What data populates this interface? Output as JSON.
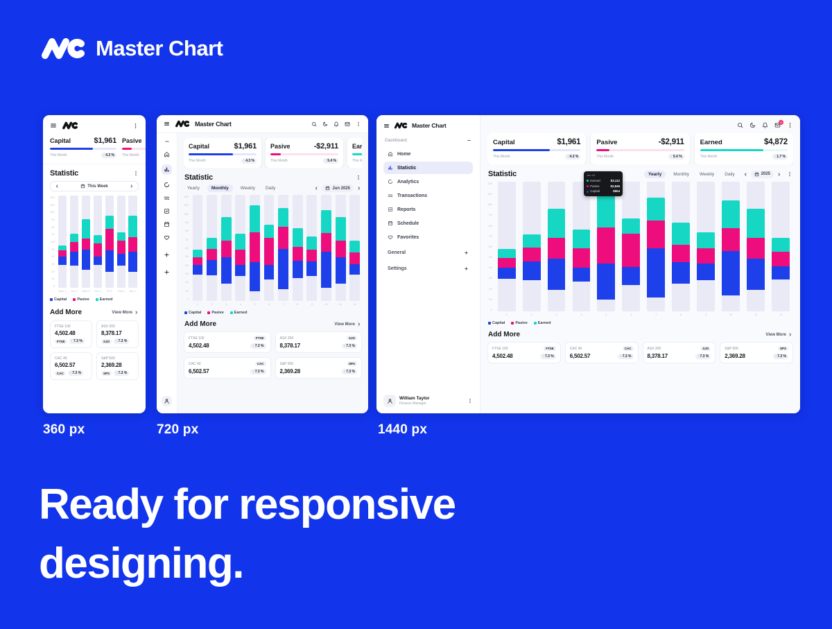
{
  "page": {
    "brand": "Master Chart",
    "headline": [
      "Ready for responsive",
      "designing."
    ],
    "breakpoints": [
      "360 px",
      "720 px",
      "1440 px"
    ]
  },
  "colors": {
    "background": "#1235ec",
    "capital": "#1d40ea",
    "pasive": "#ee0d7d",
    "earned": "#16d7c4",
    "track": "#e9eaf6",
    "badge": "#ee2c6c"
  },
  "header": {
    "mail_badge": "3"
  },
  "stats": [
    {
      "label": "Capital",
      "value": "$1,961",
      "period": "This Month",
      "change": "4.3 %",
      "progress": 65
    },
    {
      "label": "Pasive",
      "value": "-$2,911",
      "period": "This Month",
      "change": "5.4 %",
      "progress": 15
    },
    {
      "label": "Earned",
      "value": "$4,872",
      "period": "This Month",
      "change": "1.7 %",
      "progress": 72
    }
  ],
  "statistic": {
    "title": "Statistic",
    "tabs": [
      "Yearly",
      "Monthly",
      "Weekly",
      "Daily"
    ],
    "range_mobile": "This Week",
    "range_tablet": "Jun 2025",
    "range_desktop": "2025",
    "legend": [
      "Capital",
      "Pasive",
      "Earned"
    ]
  },
  "tooltip": {
    "date": "Jun 15",
    "rows": [
      {
        "name": "Earned",
        "value": "$3,112"
      },
      {
        "name": "Pasive",
        "value": "$2,845"
      },
      {
        "name": "Capital",
        "value": "$864"
      }
    ]
  },
  "add_more": {
    "title": "Add More",
    "view_more": "View More"
  },
  "tickers": [
    {
      "name": "FTSE 100",
      "value": "4,502.48",
      "symbol": "FTSE",
      "change": "7.3 %"
    },
    {
      "name": "ASX 200",
      "value": "8,378.17",
      "symbol": "XJO",
      "change": "7.3 %"
    },
    {
      "name": "CAC 40",
      "value": "6,502.57",
      "symbol": "CAC",
      "change": "7.3 %"
    },
    {
      "name": "S&P 500",
      "value": "2,369.28",
      "symbol": "SPX",
      "change": "7.3 %"
    }
  ],
  "sidebar": {
    "section": "Dashboard",
    "items": [
      {
        "label": "Home",
        "icon": "home"
      },
      {
        "label": "Statistic",
        "icon": "stats",
        "active": true
      },
      {
        "label": "Analytics",
        "icon": "analytics"
      },
      {
        "label": "Transactions",
        "icon": "transactions"
      },
      {
        "label": "Reports",
        "icon": "reports"
      },
      {
        "label": "Schedule",
        "icon": "calendar"
      },
      {
        "label": "Favorites",
        "icon": "heart"
      }
    ],
    "groups": [
      {
        "label": "General"
      },
      {
        "label": "Settings"
      }
    ],
    "user": {
      "name": "William Taylor",
      "role": "Finance Manager"
    }
  },
  "chart_data": [
    {
      "type": "bar",
      "stacked": true,
      "viewport": "360 px",
      "title": "Statistic",
      "range": "This Week",
      "categories": [
        "Mon 1",
        "Tue 2",
        "Wed 3",
        "Thu 4",
        "Fri 5",
        "Sat 6",
        "Sun 7"
      ],
      "series": [
        {
          "name": "Capital",
          "values": [
            24,
            30,
            36,
            19,
            36,
            26,
            34
          ]
        },
        {
          "name": "Pasive",
          "values": [
            17,
            22,
            19,
            31,
            36,
            29,
            24
          ]
        },
        {
          "name": "Earned",
          "values": [
            14,
            18,
            34,
            19,
            22,
            17,
            36
          ]
        }
      ],
      "ylim": [
        0,
        120
      ],
      "ytick": 10,
      "legend_position": "bottom"
    },
    {
      "type": "bar",
      "stacked": true,
      "viewport": "720 px",
      "title": "Statistic",
      "range": "Jun 2025",
      "categories": [
        "1",
        "2",
        "3",
        "4",
        "5",
        "6",
        "7",
        "8",
        "9",
        "10",
        "11",
        "12"
      ],
      "series": [
        {
          "name": "Capital",
          "values": [
            22,
            29,
            37,
            20,
            37,
            23,
            52,
            29,
            26,
            48,
            37,
            22
          ]
        },
        {
          "name": "Pasive",
          "values": [
            18,
            22,
            24,
            28,
            37,
            43,
            29,
            23,
            23,
            25,
            24,
            23
          ]
        },
        {
          "name": "Earned",
          "values": [
            18,
            20,
            34,
            28,
            34,
            20,
            24,
            30,
            24,
            30,
            34,
            23
          ]
        }
      ],
      "ylim": [
        0,
        120
      ],
      "ytick": 10,
      "legend_position": "bottom"
    },
    {
      "type": "bar",
      "stacked": true,
      "viewport": "1440 px",
      "title": "Statistic",
      "range": "2025",
      "categories": [
        "1",
        "2",
        "3",
        "4",
        "5",
        "6",
        "7",
        "8",
        "9",
        "10",
        "11",
        "12"
      ],
      "series": [
        {
          "name": "Capital",
          "values": [
            22,
            29,
            37,
            20,
            37,
            23,
            52,
            29,
            26,
            48,
            37,
            22
          ]
        },
        {
          "name": "Pasive",
          "values": [
            18,
            22,
            24,
            28,
            37,
            43,
            29,
            23,
            23,
            25,
            24,
            23
          ]
        },
        {
          "name": "Earned",
          "values": [
            18,
            20,
            34,
            28,
            34,
            20,
            24,
            30,
            24,
            30,
            34,
            23
          ]
        }
      ],
      "ylim": [
        0,
        120
      ],
      "ytick": 10,
      "legend_position": "bottom"
    }
  ]
}
